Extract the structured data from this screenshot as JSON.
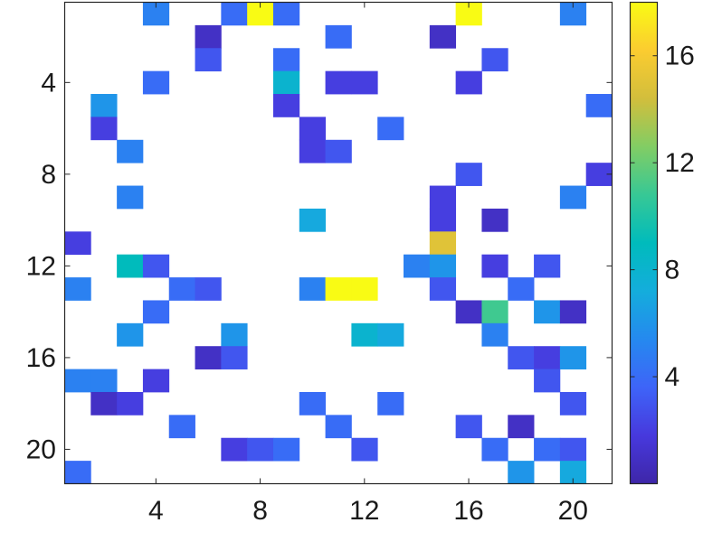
{
  "chart_data": {
    "type": "heatmap",
    "title": "",
    "xlabel": "",
    "ylabel": "",
    "rows": 21,
    "cols": 21,
    "xticks": [
      4,
      8,
      12,
      16,
      20
    ],
    "yticks": [
      4,
      8,
      12,
      16,
      20
    ],
    "colormap": "parula",
    "color_range": [
      0,
      18
    ],
    "colorbar_ticks": [
      4,
      8,
      12,
      16
    ],
    "zero_color": "#ffffff",
    "cells": [
      {
        "row": 1,
        "col": 4,
        "value": 5
      },
      {
        "row": 1,
        "col": 7,
        "value": 4
      },
      {
        "row": 1,
        "col": 8,
        "value": 18
      },
      {
        "row": 1,
        "col": 9,
        "value": 4
      },
      {
        "row": 1,
        "col": 16,
        "value": 18
      },
      {
        "row": 1,
        "col": 20,
        "value": 5
      },
      {
        "row": 2,
        "col": 6,
        "value": 1
      },
      {
        "row": 2,
        "col": 11,
        "value": 4
      },
      {
        "row": 2,
        "col": 15,
        "value": 1
      },
      {
        "row": 3,
        "col": 6,
        "value": 3
      },
      {
        "row": 3,
        "col": 9,
        "value": 4
      },
      {
        "row": 3,
        "col": 17,
        "value": 3
      },
      {
        "row": 4,
        "col": 4,
        "value": 4
      },
      {
        "row": 4,
        "col": 9,
        "value": 8
      },
      {
        "row": 4,
        "col": 11,
        "value": 2
      },
      {
        "row": 4,
        "col": 12,
        "value": 2
      },
      {
        "row": 4,
        "col": 16,
        "value": 2
      },
      {
        "row": 5,
        "col": 2,
        "value": 6
      },
      {
        "row": 5,
        "col": 9,
        "value": 2
      },
      {
        "row": 5,
        "col": 21,
        "value": 4
      },
      {
        "row": 6,
        "col": 2,
        "value": 2
      },
      {
        "row": 6,
        "col": 10,
        "value": 2
      },
      {
        "row": 6,
        "col": 13,
        "value": 4
      },
      {
        "row": 7,
        "col": 3,
        "value": 5
      },
      {
        "row": 7,
        "col": 10,
        "value": 2
      },
      {
        "row": 7,
        "col": 11,
        "value": 3
      },
      {
        "row": 8,
        "col": 16,
        "value": 3
      },
      {
        "row": 8,
        "col": 21,
        "value": 2
      },
      {
        "row": 9,
        "col": 3,
        "value": 5
      },
      {
        "row": 9,
        "col": 15,
        "value": 2
      },
      {
        "row": 9,
        "col": 20,
        "value": 5
      },
      {
        "row": 10,
        "col": 10,
        "value": 7
      },
      {
        "row": 10,
        "col": 15,
        "value": 2
      },
      {
        "row": 10,
        "col": 17,
        "value": 1
      },
      {
        "row": 11,
        "col": 1,
        "value": 2
      },
      {
        "row": 11,
        "col": 15,
        "value": 15
      },
      {
        "row": 12,
        "col": 3,
        "value": 9
      },
      {
        "row": 12,
        "col": 4,
        "value": 3
      },
      {
        "row": 12,
        "col": 14,
        "value": 5
      },
      {
        "row": 12,
        "col": 15,
        "value": 6
      },
      {
        "row": 12,
        "col": 17,
        "value": 2
      },
      {
        "row": 12,
        "col": 19,
        "value": 3
      },
      {
        "row": 13,
        "col": 1,
        "value": 5
      },
      {
        "row": 13,
        "col": 5,
        "value": 4
      },
      {
        "row": 13,
        "col": 6,
        "value": 3
      },
      {
        "row": 13,
        "col": 10,
        "value": 5
      },
      {
        "row": 13,
        "col": 11,
        "value": 18
      },
      {
        "row": 13,
        "col": 12,
        "value": 18
      },
      {
        "row": 13,
        "col": 15,
        "value": 3
      },
      {
        "row": 13,
        "col": 18,
        "value": 4
      },
      {
        "row": 14,
        "col": 4,
        "value": 4
      },
      {
        "row": 14,
        "col": 16,
        "value": 1
      },
      {
        "row": 14,
        "col": 17,
        "value": 11
      },
      {
        "row": 14,
        "col": 19,
        "value": 6
      },
      {
        "row": 14,
        "col": 20,
        "value": 1
      },
      {
        "row": 15,
        "col": 3,
        "value": 6
      },
      {
        "row": 15,
        "col": 7,
        "value": 6
      },
      {
        "row": 15,
        "col": 12,
        "value": 8
      },
      {
        "row": 15,
        "col": 13,
        "value": 7
      },
      {
        "row": 15,
        "col": 17,
        "value": 5
      },
      {
        "row": 16,
        "col": 6,
        "value": 1
      },
      {
        "row": 16,
        "col": 7,
        "value": 3
      },
      {
        "row": 16,
        "col": 18,
        "value": 3
      },
      {
        "row": 16,
        "col": 19,
        "value": 2
      },
      {
        "row": 16,
        "col": 20,
        "value": 6
      },
      {
        "row": 17,
        "col": 1,
        "value": 5
      },
      {
        "row": 17,
        "col": 2,
        "value": 5
      },
      {
        "row": 17,
        "col": 4,
        "value": 2
      },
      {
        "row": 17,
        "col": 19,
        "value": 3
      },
      {
        "row": 18,
        "col": 2,
        "value": 1
      },
      {
        "row": 18,
        "col": 3,
        "value": 2
      },
      {
        "row": 18,
        "col": 10,
        "value": 4
      },
      {
        "row": 18,
        "col": 13,
        "value": 4
      },
      {
        "row": 18,
        "col": 20,
        "value": 3
      },
      {
        "row": 19,
        "col": 5,
        "value": 4
      },
      {
        "row": 19,
        "col": 11,
        "value": 4
      },
      {
        "row": 19,
        "col": 16,
        "value": 3
      },
      {
        "row": 19,
        "col": 18,
        "value": 1
      },
      {
        "row": 20,
        "col": 7,
        "value": 2
      },
      {
        "row": 20,
        "col": 8,
        "value": 3
      },
      {
        "row": 20,
        "col": 9,
        "value": 4
      },
      {
        "row": 20,
        "col": 12,
        "value": 3
      },
      {
        "row": 20,
        "col": 17,
        "value": 4
      },
      {
        "row": 20,
        "col": 19,
        "value": 4
      },
      {
        "row": 20,
        "col": 20,
        "value": 3
      },
      {
        "row": 21,
        "col": 1,
        "value": 4
      },
      {
        "row": 21,
        "col": 18,
        "value": 6
      },
      {
        "row": 21,
        "col": 20,
        "value": 7
      }
    ]
  }
}
